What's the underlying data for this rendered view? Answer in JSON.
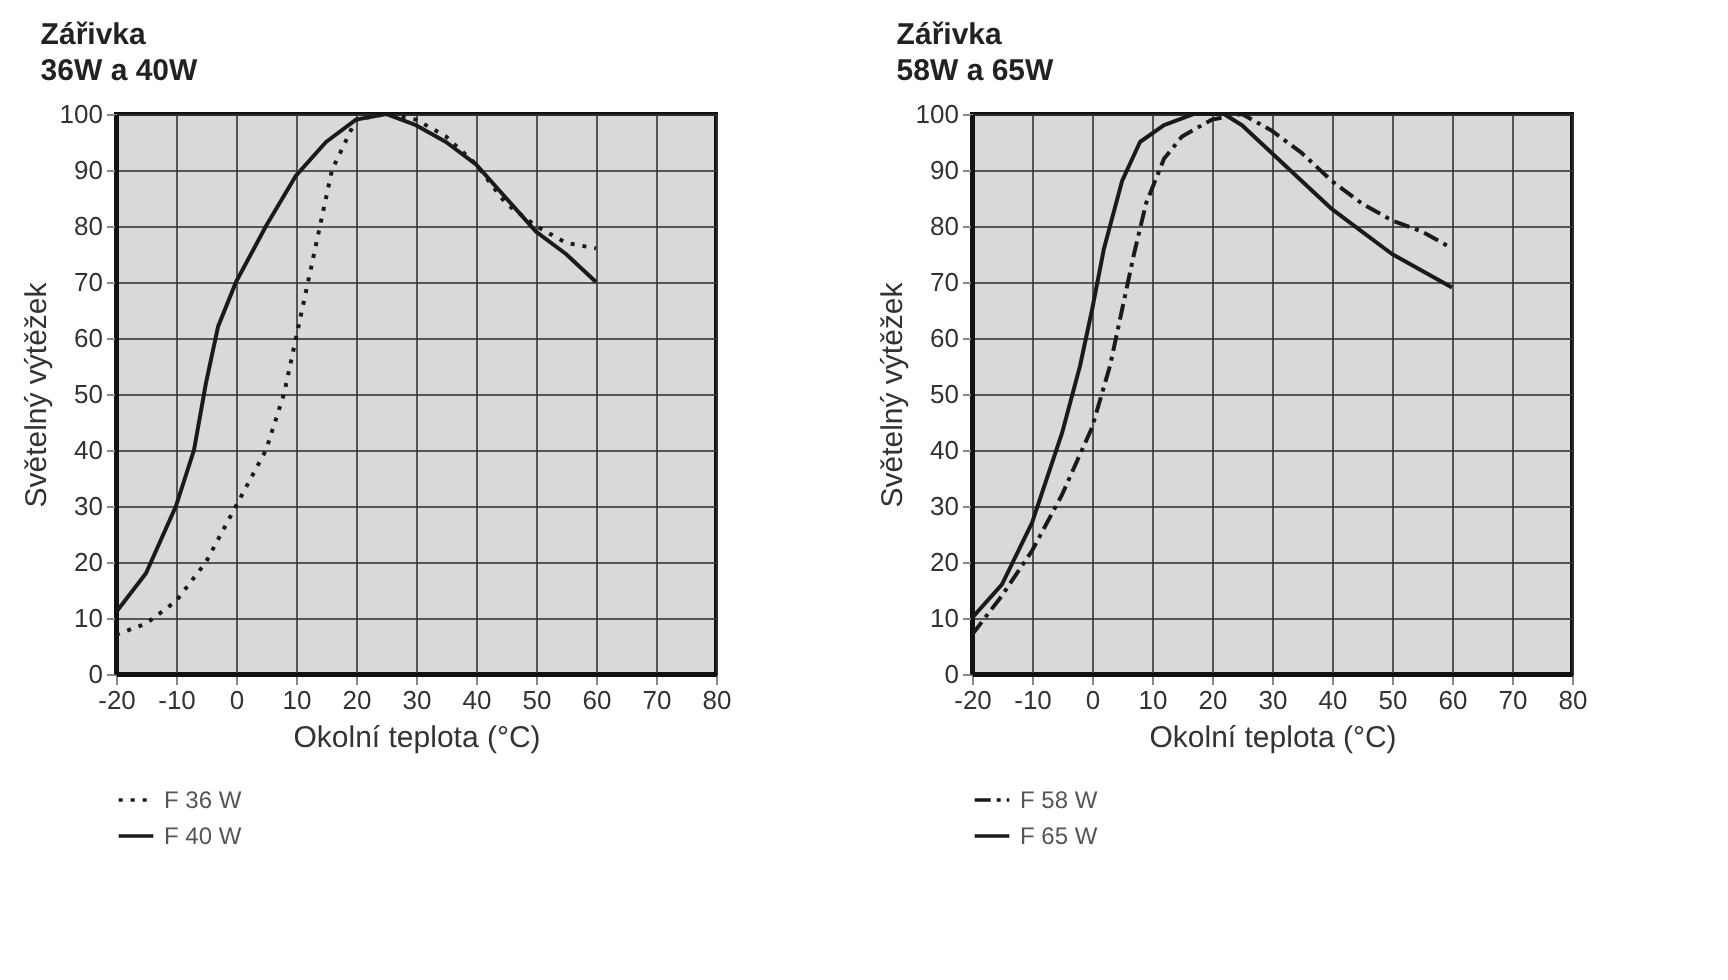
{
  "chart_data": [
    {
      "type": "line",
      "title": "Zářivka",
      "subtitle": "36W a 40W",
      "xlabel": "Okolní teplota (°C)",
      "ylabel": "Světelný výtěžek",
      "xlim": [
        -20,
        80
      ],
      "xticks": [
        -20,
        -10,
        0,
        10,
        20,
        30,
        40,
        50,
        60,
        70,
        80
      ],
      "ylim": [
        0,
        100
      ],
      "yticks": [
        0,
        10,
        20,
        30,
        40,
        50,
        60,
        70,
        80,
        90,
        100
      ],
      "grid": true,
      "legend": "bottom left",
      "series": [
        {
          "name": "F 36 W",
          "color": "#1a1a1a",
          "line_style": "dotted",
          "x": [
            -20,
            -15,
            -10,
            -5,
            0,
            5,
            8,
            10,
            12,
            14,
            16,
            20,
            25,
            30,
            35,
            40,
            45,
            50,
            55,
            60
          ],
          "values": [
            7,
            9,
            13,
            20,
            30,
            40,
            50,
            60,
            70,
            80,
            90,
            99,
            100,
            99,
            96,
            91,
            84,
            80,
            77,
            76
          ]
        },
        {
          "name": "F 40 W",
          "color": "#1a1a1a",
          "line_style": "solid",
          "x": [
            -20,
            -15,
            -10,
            -7,
            -5,
            -3,
            0,
            5,
            10,
            15,
            20,
            25,
            30,
            35,
            40,
            45,
            50,
            55,
            60
          ],
          "values": [
            11,
            18,
            30,
            40,
            52,
            62,
            70,
            80,
            89,
            95,
            99,
            100,
            98,
            95,
            91,
            85,
            79,
            75,
            70
          ]
        }
      ]
    },
    {
      "type": "line",
      "title": "Zářivka",
      "subtitle": "58W a 65W",
      "xlabel": "Okolní teplota (°C)",
      "ylabel": "Světelný výtěžek",
      "xlim": [
        -20,
        80
      ],
      "xticks": [
        -20,
        -10,
        0,
        10,
        20,
        30,
        40,
        50,
        60,
        70,
        80
      ],
      "ylim": [
        0,
        100
      ],
      "yticks": [
        0,
        10,
        20,
        30,
        40,
        50,
        60,
        70,
        80,
        90,
        100
      ],
      "grid": true,
      "legend": "bottom left",
      "series": [
        {
          "name": "F 58 W",
          "color": "#1a1a1a",
          "line_style": "dashed",
          "x": [
            -20,
            -15,
            -10,
            -5,
            0,
            3,
            5,
            7,
            9,
            12,
            15,
            20,
            25,
            30,
            35,
            40,
            45,
            50,
            55,
            60
          ],
          "values": [
            7,
            14,
            22,
            32,
            44,
            55,
            65,
            75,
            84,
            92,
            96,
            99,
            100,
            97,
            93,
            88,
            84,
            81,
            79,
            76
          ]
        },
        {
          "name": "F 65 W",
          "color": "#1a1a1a",
          "line_style": "solid",
          "x": [
            -20,
            -15,
            -10,
            -5,
            -2,
            0,
            2,
            5,
            8,
            12,
            17,
            22,
            25,
            30,
            35,
            40,
            45,
            50,
            55,
            60
          ],
          "values": [
            10,
            16,
            27,
            43,
            55,
            65,
            76,
            88,
            95,
            98,
            100,
            100,
            98,
            93,
            88,
            83,
            79,
            75,
            72,
            69
          ]
        }
      ]
    }
  ]
}
